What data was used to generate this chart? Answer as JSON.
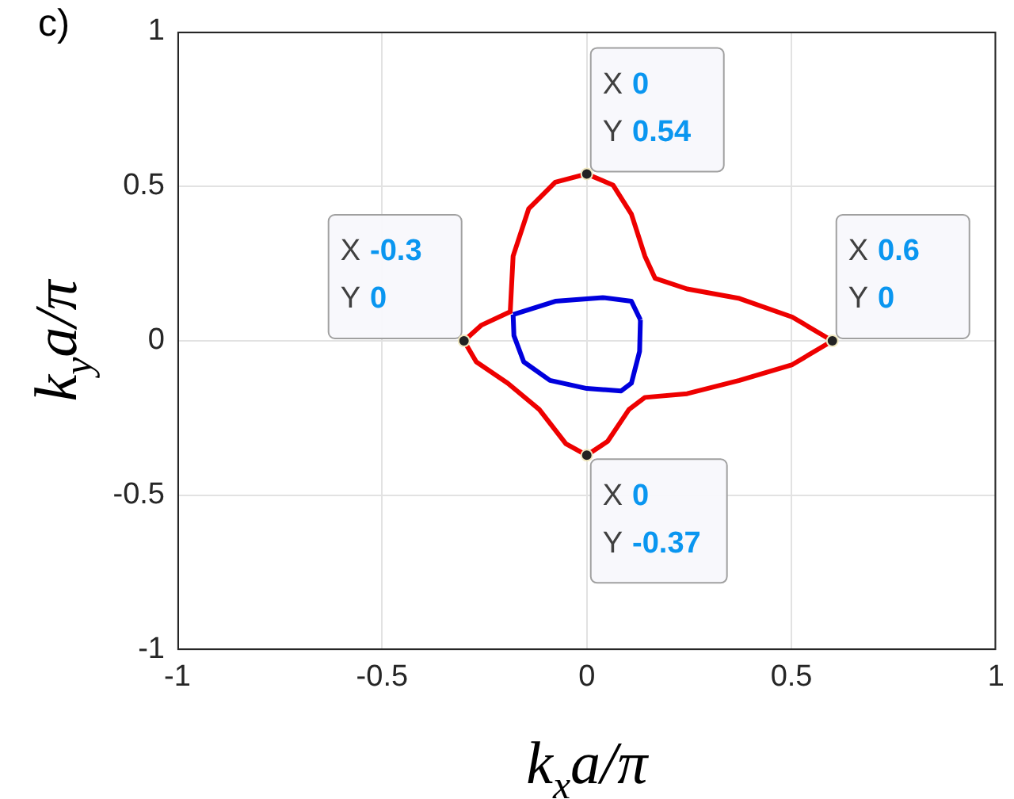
{
  "chart_data": {
    "type": "line",
    "title": "c)",
    "xlabel": "k$_{x}$a/π",
    "ylabel": "k$_{y}$a/π",
    "xlim": [
      -1,
      1
    ],
    "ylim": [
      -1,
      1
    ],
    "xticks": [
      -1,
      -0.5,
      0,
      0.5,
      1
    ],
    "yticks": [
      -1,
      -0.5,
      0,
      0.5,
      1
    ],
    "grid": true,
    "legend": false,
    "marker": "none",
    "series": [
      {
        "color": "#ee0000",
        "x": [
          -0.3,
          -0.257,
          -0.187,
          -0.18,
          -0.142,
          -0.077,
          0,
          0.064,
          0.109,
          0.142,
          0.167,
          0.245,
          0.373,
          0.502,
          0.6
        ],
        "values": [
          0,
          0.051,
          0.094,
          0.274,
          0.427,
          0.513,
          0.54,
          0.504,
          0.41,
          0.274,
          0.202,
          0.168,
          0.137,
          0.077,
          0
        ]
      },
      {
        "color": "#ee0000",
        "x": [
          -0.3,
          -0.27,
          -0.193,
          -0.116,
          -0.051,
          0,
          0.051,
          0.103,
          0.142,
          0.245,
          0.373,
          0.502,
          0.6
        ],
        "values": [
          0,
          -0.068,
          -0.137,
          -0.222,
          -0.333,
          -0.37,
          -0.325,
          -0.222,
          -0.183,
          -0.171,
          -0.128,
          -0.077,
          0
        ]
      },
      {
        "color": "#0000dd",
        "x": [
          -0.18,
          -0.077,
          0.039,
          0.109,
          0.131
        ],
        "values": [
          0.085,
          0.128,
          0.14,
          0.128,
          0.068
        ]
      },
      {
        "color": "#0000dd",
        "x": [
          -0.18,
          -0.178,
          -0.154,
          -0.09,
          0,
          0.084,
          0.109,
          0.129,
          0.131
        ],
        "values": [
          0.085,
          0.017,
          -0.068,
          -0.128,
          -0.154,
          -0.162,
          -0.137,
          -0.034,
          0.068
        ]
      }
    ],
    "annotations": [
      {
        "text": "X 0\nY 0.54",
        "x": 0,
        "y": 0.54
      },
      {
        "text": "X -0.3\nY 0",
        "x": -0.3,
        "y": 0
      },
      {
        "text": "X 0.6\nY 0",
        "x": 0.6,
        "y": 0
      },
      {
        "text": "X 0\nY -0.37",
        "x": 0,
        "y": -0.37
      }
    ]
  }
}
